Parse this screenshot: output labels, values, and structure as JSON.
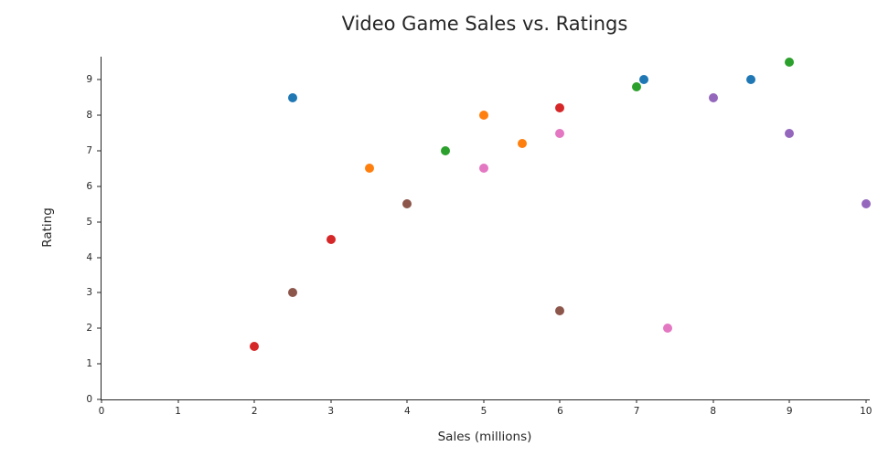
{
  "chart_data": {
    "type": "scatter",
    "title": "Video Game Sales vs. Ratings",
    "xlabel": "Sales (millions)",
    "ylabel": "Rating",
    "xlim": [
      0,
      10.05
    ],
    "ylim": [
      0,
      9.65
    ],
    "xticks": [
      0,
      1,
      2,
      3,
      4,
      5,
      6,
      7,
      8,
      9,
      10
    ],
    "yticks": [
      0,
      1,
      2,
      3,
      4,
      5,
      6,
      7,
      8,
      9
    ],
    "grid": false,
    "legend": "none",
    "series": [
      {
        "name": "series-blue",
        "color": "#1f77b4",
        "points": [
          [
            2.5,
            8.5
          ],
          [
            7.1,
            9.0
          ],
          [
            8.5,
            9.0
          ]
        ]
      },
      {
        "name": "series-orange",
        "color": "#ff7f0e",
        "points": [
          [
            3.5,
            6.5
          ],
          [
            5.0,
            8.0
          ],
          [
            5.5,
            7.2
          ]
        ]
      },
      {
        "name": "series-green",
        "color": "#2ca02c",
        "points": [
          [
            4.5,
            7.0
          ],
          [
            7.0,
            8.8
          ],
          [
            9.0,
            9.5
          ]
        ]
      },
      {
        "name": "series-red",
        "color": "#d62728",
        "points": [
          [
            2.0,
            1.5
          ],
          [
            3.0,
            4.5
          ],
          [
            6.0,
            8.2
          ]
        ]
      },
      {
        "name": "series-purple",
        "color": "#9467bd",
        "points": [
          [
            8.0,
            8.5
          ],
          [
            9.0,
            7.5
          ],
          [
            10.0,
            5.5
          ]
        ]
      },
      {
        "name": "series-brown",
        "color": "#8c564b",
        "points": [
          [
            2.5,
            3.0
          ],
          [
            4.0,
            5.5
          ],
          [
            6.0,
            2.5
          ]
        ]
      },
      {
        "name": "series-pink",
        "color": "#e377c2",
        "points": [
          [
            5.0,
            6.5
          ],
          [
            6.0,
            7.5
          ],
          [
            7.4,
            2.0
          ]
        ]
      }
    ]
  }
}
